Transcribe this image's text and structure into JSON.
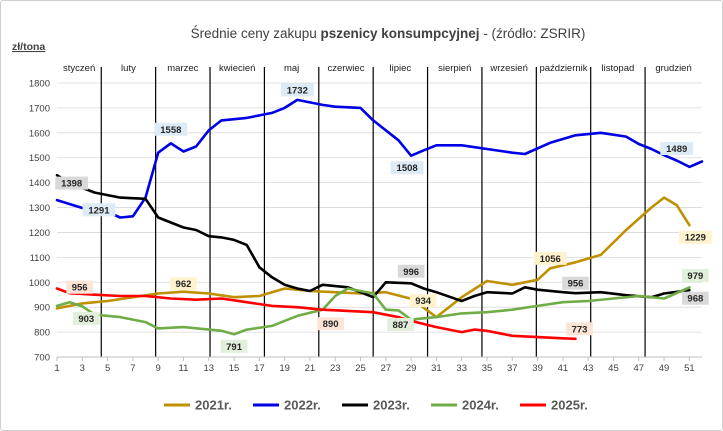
{
  "chart_data": {
    "type": "line",
    "title_prefix": "Średnie ceny zakupu ",
    "title_bold": "pszenicy konsumpcyjnej",
    "title_suffix": " - (źródło: ZSRIR)",
    "ylabel": "zł/tona",
    "ylim": [
      700,
      1800
    ],
    "yticks": [
      700,
      800,
      900,
      1000,
      1100,
      1200,
      1300,
      1400,
      1500,
      1600,
      1700,
      1800
    ],
    "xlim": [
      1,
      52
    ],
    "xticks": [
      1,
      3,
      5,
      7,
      9,
      11,
      13,
      15,
      17,
      19,
      21,
      23,
      25,
      27,
      29,
      31,
      33,
      35,
      37,
      39,
      41,
      43,
      45,
      47,
      49,
      51
    ],
    "months": [
      {
        "label": "styczeń",
        "start": 1,
        "end": 4.5
      },
      {
        "label": "luty",
        "start": 4.5,
        "end": 8.8
      },
      {
        "label": "marzec",
        "start": 8.8,
        "end": 13.1
      },
      {
        "label": "kwiecień",
        "start": 13.1,
        "end": 17.4
      },
      {
        "label": "maj",
        "start": 17.4,
        "end": 21.7
      },
      {
        "label": "czerwiec",
        "start": 21.7,
        "end": 26.0
      },
      {
        "label": "lipiec",
        "start": 26.0,
        "end": 30.3
      },
      {
        "label": "sierpień",
        "start": 30.3,
        "end": 34.6
      },
      {
        "label": "wrzesień",
        "start": 34.6,
        "end": 38.9
      },
      {
        "label": "październik",
        "start": 38.9,
        "end": 43.2
      },
      {
        "label": "listopad",
        "start": 43.2,
        "end": 47.5
      },
      {
        "label": "grudzień",
        "start": 47.5,
        "end": 52
      }
    ],
    "series": [
      {
        "name": "2021r.",
        "color": "#bf9000",
        "points": [
          [
            1,
            895
          ],
          [
            3,
            915
          ],
          [
            5,
            925
          ],
          [
            7,
            940
          ],
          [
            9,
            955
          ],
          [
            11,
            962
          ],
          [
            13,
            955
          ],
          [
            15,
            940
          ],
          [
            17,
            945
          ],
          [
            19,
            975
          ],
          [
            21,
            965
          ],
          [
            23,
            960
          ],
          [
            25,
            955
          ],
          [
            27,
            960
          ],
          [
            29,
            934
          ],
          [
            31,
            860
          ],
          [
            33,
            940
          ],
          [
            35,
            1005
          ],
          [
            37,
            990
          ],
          [
            39,
            1010
          ],
          [
            40,
            1056
          ],
          [
            42,
            1080
          ],
          [
            44,
            1110
          ],
          [
            46,
            1210
          ],
          [
            48,
            1300
          ],
          [
            49,
            1340
          ],
          [
            50,
            1310
          ],
          [
            51,
            1229
          ]
        ]
      },
      {
        "name": "2022r.",
        "color": "#0000e6",
        "points": [
          [
            1,
            1330
          ],
          [
            3,
            1298
          ],
          [
            4,
            1291
          ],
          [
            5,
            1282
          ],
          [
            6,
            1260
          ],
          [
            7,
            1265
          ],
          [
            8,
            1340
          ],
          [
            9,
            1520
          ],
          [
            10,
            1558
          ],
          [
            11,
            1525
          ],
          [
            12,
            1545
          ],
          [
            13,
            1610
          ],
          [
            14,
            1650
          ],
          [
            16,
            1660
          ],
          [
            17,
            1670
          ],
          [
            18,
            1680
          ],
          [
            19,
            1700
          ],
          [
            20,
            1732
          ],
          [
            22,
            1712
          ],
          [
            23,
            1705
          ],
          [
            25,
            1700
          ],
          [
            26,
            1650
          ],
          [
            27,
            1610
          ],
          [
            28,
            1570
          ],
          [
            29,
            1508
          ],
          [
            30,
            1530
          ],
          [
            31,
            1550
          ],
          [
            33,
            1550
          ],
          [
            35,
            1535
          ],
          [
            37,
            1520
          ],
          [
            38,
            1515
          ],
          [
            40,
            1560
          ],
          [
            42,
            1590
          ],
          [
            44,
            1600
          ],
          [
            46,
            1585
          ],
          [
            47,
            1555
          ],
          [
            48,
            1535
          ],
          [
            49,
            1510
          ],
          [
            50,
            1489
          ],
          [
            51,
            1463
          ],
          [
            52,
            1485
          ]
        ]
      },
      {
        "name": "2023r.",
        "color": "#000000",
        "points": [
          [
            1,
            1430
          ],
          [
            2,
            1398
          ],
          [
            4,
            1360
          ],
          [
            6,
            1340
          ],
          [
            8,
            1335
          ],
          [
            9,
            1260
          ],
          [
            10,
            1240
          ],
          [
            11,
            1220
          ],
          [
            12,
            1210
          ],
          [
            13,
            1185
          ],
          [
            14,
            1180
          ],
          [
            15,
            1170
          ],
          [
            16,
            1150
          ],
          [
            17,
            1060
          ],
          [
            18,
            1020
          ],
          [
            19,
            990
          ],
          [
            20,
            975
          ],
          [
            21,
            965
          ],
          [
            22,
            990
          ],
          [
            24,
            980
          ],
          [
            26,
            940
          ],
          [
            27,
            1000
          ],
          [
            29,
            996
          ],
          [
            30,
            975
          ],
          [
            31,
            960
          ],
          [
            33,
            925
          ],
          [
            34,
            945
          ],
          [
            35,
            960
          ],
          [
            37,
            955
          ],
          [
            38,
            980
          ],
          [
            39,
            970
          ],
          [
            41,
            960
          ],
          [
            42,
            956
          ],
          [
            44,
            960
          ],
          [
            46,
            948
          ],
          [
            48,
            940
          ],
          [
            49,
            955
          ],
          [
            51,
            968
          ]
        ]
      },
      {
        "name": "2024r.",
        "color": "#70ad47",
        "points": [
          [
            1,
            905
          ],
          [
            2,
            920
          ],
          [
            3,
            903
          ],
          [
            4,
            870
          ],
          [
            6,
            860
          ],
          [
            8,
            840
          ],
          [
            9,
            815
          ],
          [
            11,
            820
          ],
          [
            13,
            810
          ],
          [
            14,
            805
          ],
          [
            15,
            791
          ],
          [
            16,
            810
          ],
          [
            18,
            825
          ],
          [
            20,
            865
          ],
          [
            22,
            890
          ],
          [
            23,
            945
          ],
          [
            24,
            975
          ],
          [
            25,
            965
          ],
          [
            26,
            955
          ],
          [
            27,
            890
          ],
          [
            28,
            887
          ],
          [
            29,
            850
          ],
          [
            31,
            860
          ],
          [
            33,
            875
          ],
          [
            35,
            880
          ],
          [
            37,
            890
          ],
          [
            39,
            905
          ],
          [
            41,
            920
          ],
          [
            43,
            925
          ],
          [
            45,
            935
          ],
          [
            47,
            945
          ],
          [
            49,
            935
          ],
          [
            51,
            979
          ]
        ]
      },
      {
        "name": "2025r.",
        "color": "#ff0000",
        "points": [
          [
            1,
            975
          ],
          [
            2,
            956
          ],
          [
            4,
            950
          ],
          [
            6,
            945
          ],
          [
            8,
            945
          ],
          [
            10,
            935
          ],
          [
            12,
            930
          ],
          [
            14,
            935
          ],
          [
            16,
            920
          ],
          [
            18,
            905
          ],
          [
            20,
            900
          ],
          [
            22,
            890
          ],
          [
            24,
            885
          ],
          [
            26,
            880
          ],
          [
            27,
            870
          ],
          [
            28,
            860
          ],
          [
            29,
            845
          ],
          [
            31,
            820
          ],
          [
            33,
            800
          ],
          [
            34,
            810
          ],
          [
            35,
            805
          ],
          [
            37,
            785
          ],
          [
            39,
            780
          ],
          [
            41,
            775
          ],
          [
            42,
            773
          ]
        ]
      }
    ],
    "data_labels": [
      {
        "series": "2021r.",
        "text": "962",
        "x": 11,
        "y": 962,
        "bg": "#fff2cc"
      },
      {
        "series": "2021r.",
        "text": "934",
        "x": 29,
        "y": 934,
        "bg": "#fff2cc"
      },
      {
        "series": "2021r.",
        "text": "1056",
        "x": 40,
        "y": 1056,
        "bg": "#fff2cc"
      },
      {
        "series": "2021r.",
        "text": "1229",
        "x": 51,
        "y": 1229,
        "bg": "#fff2cc"
      },
      {
        "series": "2022r.",
        "text": "1291",
        "x": 4,
        "y": 1291,
        "bg": "#ddebf7"
      },
      {
        "series": "2022r.",
        "text": "1558",
        "x": 10,
        "y": 1558,
        "bg": "#ddebf7"
      },
      {
        "series": "2022r.",
        "text": "1732",
        "x": 20,
        "y": 1732,
        "bg": "#ddebf7"
      },
      {
        "series": "2022r.",
        "text": "1508",
        "x": 29,
        "y": 1508,
        "bg": "#ddebf7"
      },
      {
        "series": "2022r.",
        "text": "1489",
        "x": 50,
        "y": 1489,
        "bg": "#ddebf7"
      },
      {
        "series": "2023r.",
        "text": "1398",
        "x": 2,
        "y": 1398,
        "bg": "#d9d9d9"
      },
      {
        "series": "2023r.",
        "text": "996",
        "x": 29,
        "y": 996,
        "bg": "#d9d9d9"
      },
      {
        "series": "2023r.",
        "text": "956",
        "x": 42,
        "y": 956,
        "bg": "#d9d9d9"
      },
      {
        "series": "2023r.",
        "text": "968",
        "x": 51,
        "y": 968,
        "bg": "#d9d9d9"
      },
      {
        "series": "2024r.",
        "text": "903",
        "x": 3,
        "y": 903,
        "bg": "#e2efda"
      },
      {
        "series": "2024r.",
        "text": "791",
        "x": 15,
        "y": 791,
        "bg": "#e2efda"
      },
      {
        "series": "2024r.",
        "text": "887",
        "x": 28,
        "y": 887,
        "bg": "#e2efda"
      },
      {
        "series": "2024r.",
        "text": "979",
        "x": 51,
        "y": 979,
        "bg": "#e2efda"
      },
      {
        "series": "2025r.",
        "text": "956",
        "x": 2,
        "y": 956,
        "bg": "#fce4d6"
      },
      {
        "series": "2025r.",
        "text": "890",
        "x": 22,
        "y": 890,
        "bg": "#fce4d6"
      },
      {
        "series": "2025r.",
        "text": "773",
        "x": 42,
        "y": 773,
        "bg": "#fce4d6"
      }
    ],
    "grid": true,
    "legend_position": "bottom"
  }
}
